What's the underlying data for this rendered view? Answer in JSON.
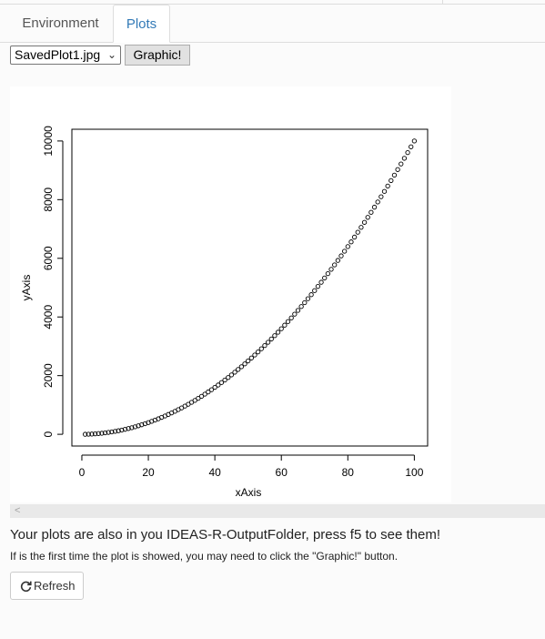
{
  "tabs": [
    {
      "label": "Environment",
      "active": false
    },
    {
      "label": "Plots",
      "active": true
    }
  ],
  "toolbar": {
    "selected_file": "SavedPlot1.jpg",
    "graphic_button_label": "Graphic!"
  },
  "chart_data": {
    "type": "scatter",
    "title": "",
    "xlabel": "xAxis",
    "ylabel": "yAxis",
    "x_ticks": [
      "0",
      "20",
      "40",
      "60",
      "80",
      "100"
    ],
    "y_ticks": [
      "0",
      "2000",
      "4000",
      "6000",
      "8000",
      "10000"
    ],
    "xlim": [
      -3,
      104
    ],
    "ylim": [
      -400,
      10400
    ],
    "marker": "open-circle",
    "series": [
      {
        "x_from": 1,
        "x_to": 100,
        "step": 1,
        "y_rule": "x^2"
      }
    ]
  },
  "messages": {
    "line1": "Your plots are also in you IDEAS-R-OutputFolder, press f5 to see them!",
    "line2": "If is the first time the plot is showed, you may need to click the \"Graphic!\" button."
  },
  "refresh_button_label": "Refresh",
  "colors": {
    "accent": "#337ab7",
    "border": "#dddddd"
  }
}
